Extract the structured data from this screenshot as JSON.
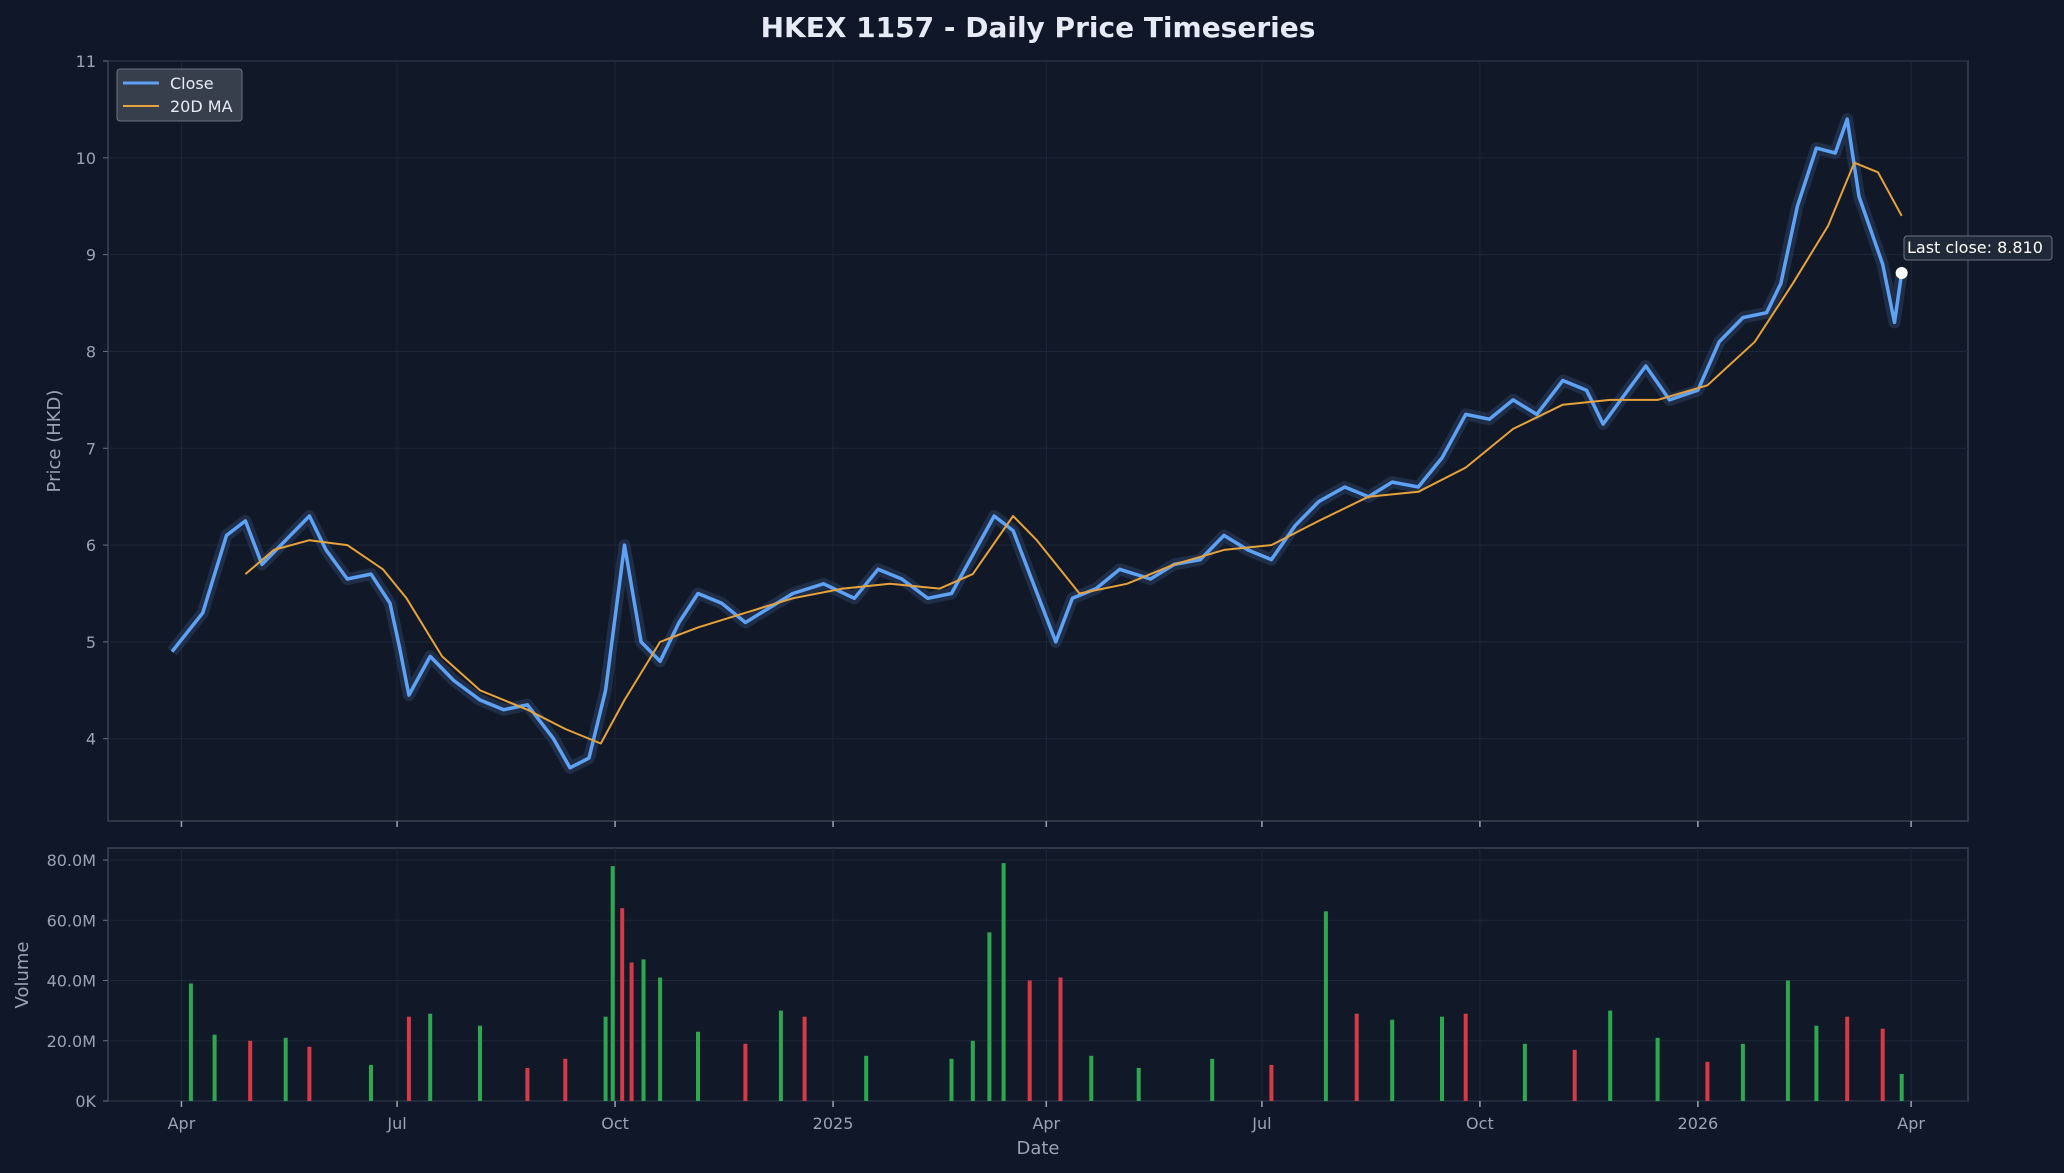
{
  "chart_data": {
    "type": "line",
    "title": "HKEX 1157 - Daily Price Timeseries",
    "price_panel": {
      "ylabel": "Price (HKD)",
      "ylim": [
        3.15,
        11.0
      ],
      "yticks": [
        4,
        5,
        6,
        7,
        8,
        9,
        10,
        11
      ],
      "grid": true,
      "legend_position": "top-left",
      "series": [
        {
          "name": "Close",
          "color": "#5ea2f5",
          "points": [
            [
              "2024-03-28",
              4.9
            ],
            [
              "2024-04-10",
              5.3
            ],
            [
              "2024-04-20",
              6.1
            ],
            [
              "2024-04-28",
              6.25
            ],
            [
              "2024-05-05",
              5.8
            ],
            [
              "2024-05-15",
              6.05
            ],
            [
              "2024-05-25",
              6.3
            ],
            [
              "2024-06-01",
              5.95
            ],
            [
              "2024-06-10",
              5.65
            ],
            [
              "2024-06-20",
              5.7
            ],
            [
              "2024-06-28",
              5.4
            ],
            [
              "2024-07-02",
              4.95
            ],
            [
              "2024-07-06",
              4.45
            ],
            [
              "2024-07-15",
              4.85
            ],
            [
              "2024-07-25",
              4.6
            ],
            [
              "2024-08-05",
              4.4
            ],
            [
              "2024-08-15",
              4.3
            ],
            [
              "2024-08-25",
              4.35
            ],
            [
              "2024-09-05",
              4.0
            ],
            [
              "2024-09-12",
              3.7
            ],
            [
              "2024-09-20",
              3.8
            ],
            [
              "2024-09-27",
              4.5
            ],
            [
              "2024-10-05",
              6.0
            ],
            [
              "2024-10-12",
              5.0
            ],
            [
              "2024-10-20",
              4.8
            ],
            [
              "2024-10-28",
              5.2
            ],
            [
              "2024-11-05",
              5.5
            ],
            [
              "2024-11-15",
              5.4
            ],
            [
              "2024-11-25",
              5.2
            ],
            [
              "2024-12-05",
              5.35
            ],
            [
              "2024-12-15",
              5.5
            ],
            [
              "2024-12-28",
              5.6
            ],
            [
              "2025-01-10",
              5.45
            ],
            [
              "2025-01-20",
              5.75
            ],
            [
              "2025-01-30",
              5.65
            ],
            [
              "2025-02-10",
              5.45
            ],
            [
              "2025-02-20",
              5.5
            ],
            [
              "2025-03-01",
              5.9
            ],
            [
              "2025-03-10",
              6.3
            ],
            [
              "2025-03-18",
              6.15
            ],
            [
              "2025-03-25",
              5.7
            ],
            [
              "2025-04-05",
              5.0
            ],
            [
              "2025-04-12",
              5.45
            ],
            [
              "2025-04-22",
              5.55
            ],
            [
              "2025-05-02",
              5.75
            ],
            [
              "2025-05-15",
              5.65
            ],
            [
              "2025-05-25",
              5.8
            ],
            [
              "2025-06-05",
              5.85
            ],
            [
              "2025-06-15",
              6.1
            ],
            [
              "2025-06-25",
              5.95
            ],
            [
              "2025-07-05",
              5.85
            ],
            [
              "2025-07-15",
              6.2
            ],
            [
              "2025-07-25",
              6.45
            ],
            [
              "2025-08-05",
              6.6
            ],
            [
              "2025-08-15",
              6.5
            ],
            [
              "2025-08-25",
              6.65
            ],
            [
              "2025-09-05",
              6.6
            ],
            [
              "2025-09-15",
              6.9
            ],
            [
              "2025-09-25",
              7.35
            ],
            [
              "2025-10-05",
              7.3
            ],
            [
              "2025-10-15",
              7.5
            ],
            [
              "2025-10-25",
              7.35
            ],
            [
              "2025-11-05",
              7.7
            ],
            [
              "2025-11-15",
              7.6
            ],
            [
              "2025-11-22",
              7.25
            ],
            [
              "2025-12-01",
              7.55
            ],
            [
              "2025-12-10",
              7.85
            ],
            [
              "2025-12-20",
              7.5
            ],
            [
              "2026-01-01",
              7.6
            ],
            [
              "2026-01-10",
              8.1
            ],
            [
              "2026-01-20",
              8.35
            ],
            [
              "2026-01-30",
              8.4
            ],
            [
              "2026-02-05",
              8.7
            ],
            [
              "2026-02-12",
              9.5
            ],
            [
              "2026-02-20",
              10.1
            ],
            [
              "2026-02-28",
              10.05
            ],
            [
              "2026-03-05",
              10.4
            ],
            [
              "2026-03-10",
              9.6
            ],
            [
              "2026-03-15",
              9.25
            ],
            [
              "2026-03-20",
              8.9
            ],
            [
              "2026-03-25",
              8.3
            ],
            [
              "2026-03-28",
              8.81
            ]
          ]
        },
        {
          "name": "20D MA",
          "color": "#e8a23a",
          "points": [
            [
              "2024-04-28",
              5.7
            ],
            [
              "2024-05-10",
              5.95
            ],
            [
              "2024-05-25",
              6.05
            ],
            [
              "2024-06-10",
              6.0
            ],
            [
              "2024-06-25",
              5.75
            ],
            [
              "2024-07-05",
              5.45
            ],
            [
              "2024-07-20",
              4.85
            ],
            [
              "2024-08-05",
              4.5
            ],
            [
              "2024-08-25",
              4.3
            ],
            [
              "2024-09-10",
              4.1
            ],
            [
              "2024-09-25",
              3.95
            ],
            [
              "2024-10-05",
              4.4
            ],
            [
              "2024-10-20",
              5.0
            ],
            [
              "2024-11-05",
              5.15
            ],
            [
              "2024-11-25",
              5.3
            ],
            [
              "2024-12-15",
              5.45
            ],
            [
              "2025-01-05",
              5.55
            ],
            [
              "2025-01-25",
              5.6
            ],
            [
              "2025-02-15",
              5.55
            ],
            [
              "2025-03-01",
              5.7
            ],
            [
              "2025-03-18",
              6.3
            ],
            [
              "2025-03-28",
              6.05
            ],
            [
              "2025-04-15",
              5.5
            ],
            [
              "2025-05-05",
              5.6
            ],
            [
              "2025-05-25",
              5.8
            ],
            [
              "2025-06-15",
              5.95
            ],
            [
              "2025-07-05",
              6.0
            ],
            [
              "2025-07-25",
              6.25
            ],
            [
              "2025-08-15",
              6.5
            ],
            [
              "2025-09-05",
              6.55
            ],
            [
              "2025-09-25",
              6.8
            ],
            [
              "2025-10-15",
              7.2
            ],
            [
              "2025-11-05",
              7.45
            ],
            [
              "2025-11-25",
              7.5
            ],
            [
              "2025-12-15",
              7.5
            ],
            [
              "2026-01-05",
              7.65
            ],
            [
              "2026-01-25",
              8.1
            ],
            [
              "2026-02-10",
              8.7
            ],
            [
              "2026-02-25",
              9.3
            ],
            [
              "2026-03-08",
              9.95
            ],
            [
              "2026-03-18",
              9.85
            ],
            [
              "2026-03-28",
              9.4
            ]
          ]
        }
      ],
      "annotation": {
        "text": "Last close: 8.810",
        "date": "2026-03-28",
        "value": 8.81
      }
    },
    "volume_panel": {
      "ylabel": "Volume",
      "ylim": [
        0,
        84000000
      ],
      "ytick_labels": [
        "0K",
        "20.0M",
        "40.0M",
        "60.0M",
        "80.0M"
      ],
      "up_color": "#2ea84f",
      "down_color": "#d63a45",
      "bars": [
        [
          "2024-04-05",
          39000000,
          "up"
        ],
        [
          "2024-04-15",
          22000000,
          "up"
        ],
        [
          "2024-04-30",
          20000000,
          "down"
        ],
        [
          "2024-05-15",
          21000000,
          "up"
        ],
        [
          "2024-05-25",
          18000000,
          "down"
        ],
        [
          "2024-06-20",
          12000000,
          "up"
        ],
        [
          "2024-07-06",
          28000000,
          "down"
        ],
        [
          "2024-07-15",
          29000000,
          "up"
        ],
        [
          "2024-08-05",
          25000000,
          "up"
        ],
        [
          "2024-08-25",
          11000000,
          "down"
        ],
        [
          "2024-09-10",
          14000000,
          "down"
        ],
        [
          "2024-09-27",
          28000000,
          "up"
        ],
        [
          "2024-09-30",
          78000000,
          "up"
        ],
        [
          "2024-10-04",
          64000000,
          "down"
        ],
        [
          "2024-10-08",
          46000000,
          "down"
        ],
        [
          "2024-10-13",
          47000000,
          "up"
        ],
        [
          "2024-10-20",
          41000000,
          "up"
        ],
        [
          "2024-11-05",
          23000000,
          "up"
        ],
        [
          "2024-11-25",
          19000000,
          "down"
        ],
        [
          "2024-12-10",
          30000000,
          "up"
        ],
        [
          "2024-12-20",
          28000000,
          "down"
        ],
        [
          "2025-01-15",
          15000000,
          "up"
        ],
        [
          "2025-02-20",
          14000000,
          "up"
        ],
        [
          "2025-03-01",
          20000000,
          "up"
        ],
        [
          "2025-03-08",
          56000000,
          "up"
        ],
        [
          "2025-03-14",
          79000000,
          "up"
        ],
        [
          "2025-03-25",
          40000000,
          "down"
        ],
        [
          "2025-04-07",
          41000000,
          "down"
        ],
        [
          "2025-04-20",
          15000000,
          "up"
        ],
        [
          "2025-05-10",
          11000000,
          "up"
        ],
        [
          "2025-06-10",
          14000000,
          "up"
        ],
        [
          "2025-07-05",
          12000000,
          "down"
        ],
        [
          "2025-07-28",
          63000000,
          "up"
        ],
        [
          "2025-08-10",
          29000000,
          "down"
        ],
        [
          "2025-08-25",
          27000000,
          "up"
        ],
        [
          "2025-09-15",
          28000000,
          "up"
        ],
        [
          "2025-09-25",
          29000000,
          "down"
        ],
        [
          "2025-10-20",
          19000000,
          "up"
        ],
        [
          "2025-11-10",
          17000000,
          "down"
        ],
        [
          "2025-11-25",
          30000000,
          "up"
        ],
        [
          "2025-12-15",
          21000000,
          "up"
        ],
        [
          "2026-01-05",
          13000000,
          "down"
        ],
        [
          "2026-01-20",
          19000000,
          "up"
        ],
        [
          "2026-02-08",
          40000000,
          "up"
        ],
        [
          "2026-02-20",
          25000000,
          "up"
        ],
        [
          "2026-03-05",
          28000000,
          "down"
        ],
        [
          "2026-03-20",
          24000000,
          "down"
        ],
        [
          "2026-03-28",
          9000000,
          "up"
        ]
      ]
    },
    "x_axis": {
      "xlabel": "Date",
      "range": [
        "2024-03-01",
        "2026-04-25"
      ],
      "ticks": [
        {
          "date": "2024-04-01",
          "label": "Apr"
        },
        {
          "date": "2024-07-01",
          "label": "Jul"
        },
        {
          "date": "2024-10-01",
          "label": "Oct"
        },
        {
          "date": "2025-01-01",
          "label": "2025"
        },
        {
          "date": "2025-04-01",
          "label": "Apr"
        },
        {
          "date": "2025-07-01",
          "label": "Jul"
        },
        {
          "date": "2025-10-01",
          "label": "Oct"
        },
        {
          "date": "2026-01-01",
          "label": "2026"
        },
        {
          "date": "2026-04-01",
          "label": "Apr"
        }
      ]
    },
    "colors": {
      "background": "#0f1729",
      "panel": "#111827",
      "grid": "#1e2738",
      "text": "#9aa3b2",
      "title": "#e6ebf5"
    }
  }
}
